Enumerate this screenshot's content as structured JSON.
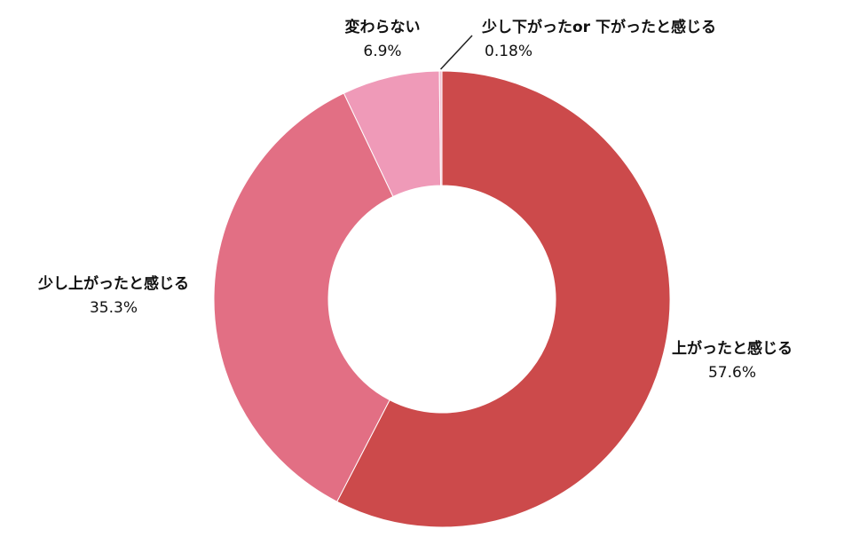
{
  "chart_data": {
    "type": "pie",
    "title": "",
    "series": [
      {
        "name": "上がったと感じる",
        "value": 57.6,
        "label": "57.6%",
        "color": "#CC4A4B"
      },
      {
        "name": "少し上がったと感じる",
        "value": 35.3,
        "label": "35.3%",
        "color": "#E26F84"
      },
      {
        "name": "変わらない",
        "value": 6.9,
        "label": "6.9%",
        "color": "#EF9AB8"
      },
      {
        "name": "少し下がったor 下がったと感じる",
        "value": 0.18,
        "label": "0.18%",
        "color": "#F3BFD0"
      }
    ],
    "legend": "none",
    "donut": true,
    "start_angle_degrees": 0,
    "direction": "clockwise"
  }
}
